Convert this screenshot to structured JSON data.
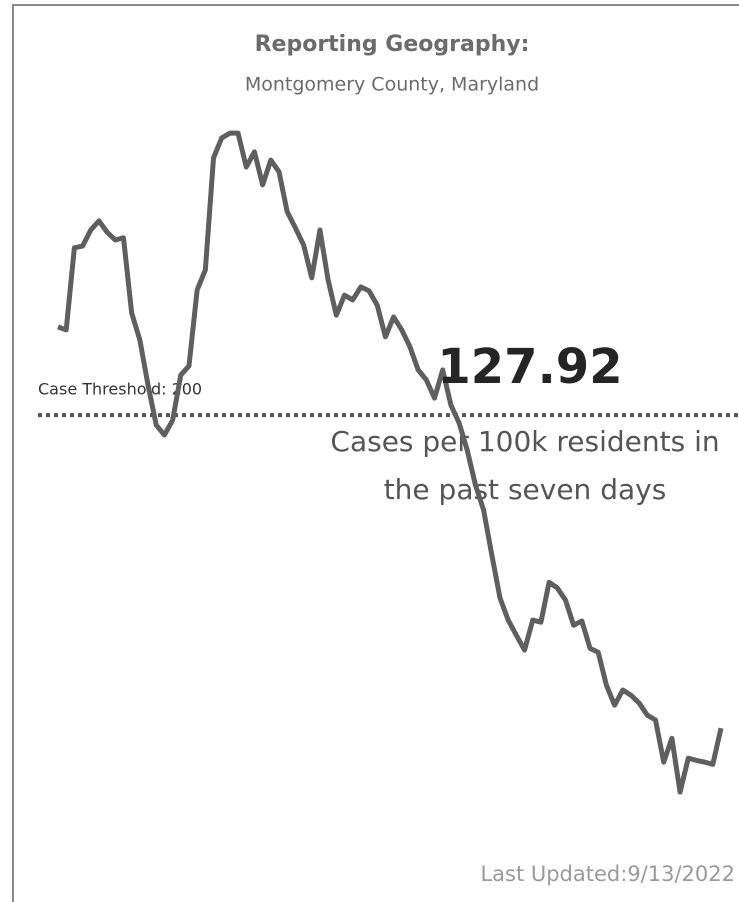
{
  "chart_data": {
    "type": "line",
    "title": "Reporting Geography:",
    "subtitle": "Montgomery County, Maryland",
    "values": [
      220.3,
      219.6,
      238.5,
      238.9,
      242.6,
      244.7,
      242.1,
      240.3,
      240.8,
      223.5,
      217.3,
      206.9,
      197.7,
      195.4,
      198.8,
      209.2,
      211.3,
      228.8,
      233.4,
      259.2,
      263.8,
      264.9,
      264.9,
      257.1,
      260.6,
      253.0,
      258.7,
      256.0,
      246.8,
      243.1,
      239.2,
      231.6,
      242.6,
      231.1,
      223.0,
      227.6,
      226.5,
      229.5,
      228.6,
      225.3,
      218.0,
      222.6,
      219.6,
      215.7,
      210.4,
      208.1,
      203.9,
      210.4,
      202.3,
      198.2,
      191.9,
      183.9,
      178.1,
      167.8,
      157.9,
      152.8,
      149.3,
      145.9,
      152.8,
      152.3,
      161.5,
      160.2,
      157.4,
      151.6,
      152.6,
      146.3,
      145.4,
      137.8,
      133.2,
      136.7,
      135.5,
      133.7,
      130.9,
      129.8,
      120.1,
      125.6,
      113.2,
      121.0,
      120.5,
      120.1,
      119.6,
      127.92
    ],
    "color": "#5f5f5f",
    "ylim": [
      110,
      270
    ],
    "threshold": 200,
    "threshold_label": "Case Threshold: 200",
    "kpi_value": 127.92,
    "kpi_caption": "Cases per 100k residents in the past seven days",
    "footer": "Last Updated:9/13/2022"
  }
}
